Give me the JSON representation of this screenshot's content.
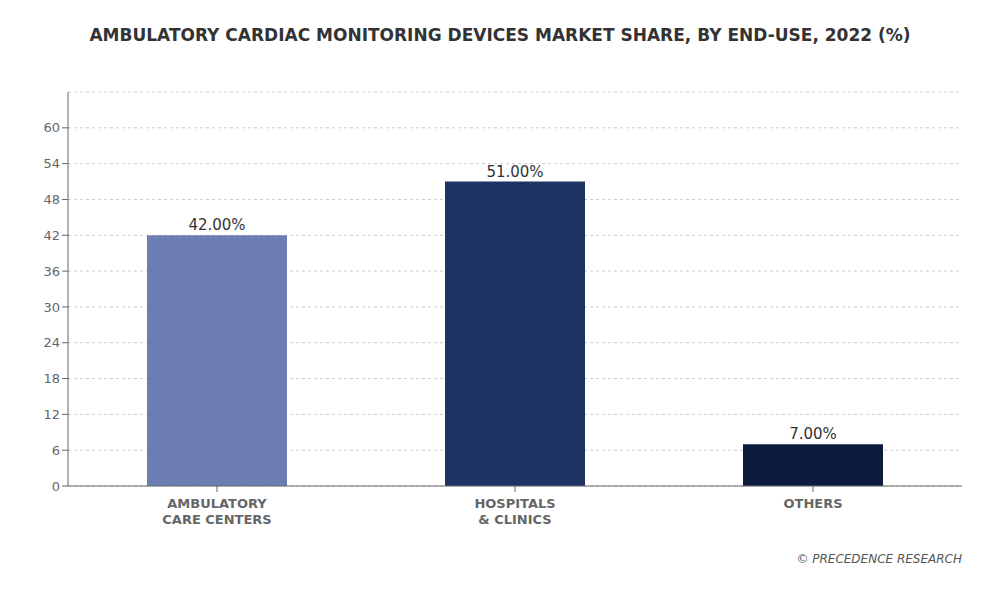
{
  "chart_data": {
    "type": "bar",
    "title": "AMBULATORY CARDIAC MONITORING DEVICES MARKET SHARE, BY END-USE, 2022 (%)",
    "categories": [
      "AMBULATORY\nCARE CENTERS",
      "HOSPITALS\n& CLINICS",
      "OTHERS"
    ],
    "values": [
      42.0,
      51.0,
      7.0
    ],
    "value_labels": [
      "42.00%",
      "51.00%",
      "7.00%"
    ],
    "data_labels": true,
    "colors": [
      "#6b7db3",
      "#1f3264",
      "#0d1b3e"
    ],
    "ylim": [
      0,
      66
    ],
    "yticks": [
      0,
      6,
      12,
      18,
      24,
      30,
      36,
      42,
      48,
      54,
      60
    ],
    "grid": true,
    "annotation": "© PRECEDENCE RESEARCH"
  }
}
